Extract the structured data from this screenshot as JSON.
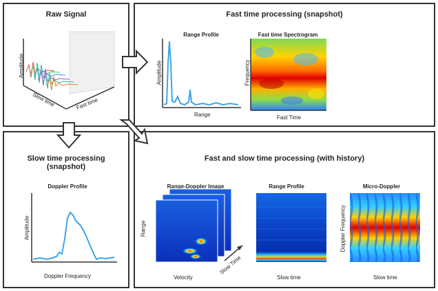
{
  "panels": {
    "raw": {
      "title": "Raw Signal",
      "y_label": "Amplitude",
      "x_label": "Slow time",
      "z_label": "Fast time"
    },
    "fast": {
      "title": "Fast time processing (snapshot)",
      "range_profile": {
        "title": "Range Profile",
        "y_label": "Amplitude",
        "x_label": "Range"
      },
      "spectrogram": {
        "title": "Fast time Spectrogram",
        "y_label": "Frequency",
        "x_label": "Fast Time"
      }
    },
    "slow": {
      "title": "Slow time processing (snapshot)",
      "doppler": {
        "title": "Doppler Profile",
        "y_label": "Amplitude",
        "x_label": "Doppler Frequency"
      }
    },
    "both": {
      "title": "Fast and slow time processing (with history)",
      "rdi": {
        "title": "Range-Doppler Image",
        "y_label": "Range",
        "x_label": "Velocity",
        "depth_label": "Slow Time"
      },
      "range_profile": {
        "title": "Range Profile",
        "x_label": "Slow time"
      },
      "micro_doppler": {
        "title": "Micro-Doppler",
        "y_label": "Doppler Frequency",
        "x_label": "Slow time"
      }
    }
  },
  "colors": {
    "line": "#3aa6e6",
    "border": "#333333",
    "jet_low": "#00008f",
    "jet_high": "#800000"
  }
}
